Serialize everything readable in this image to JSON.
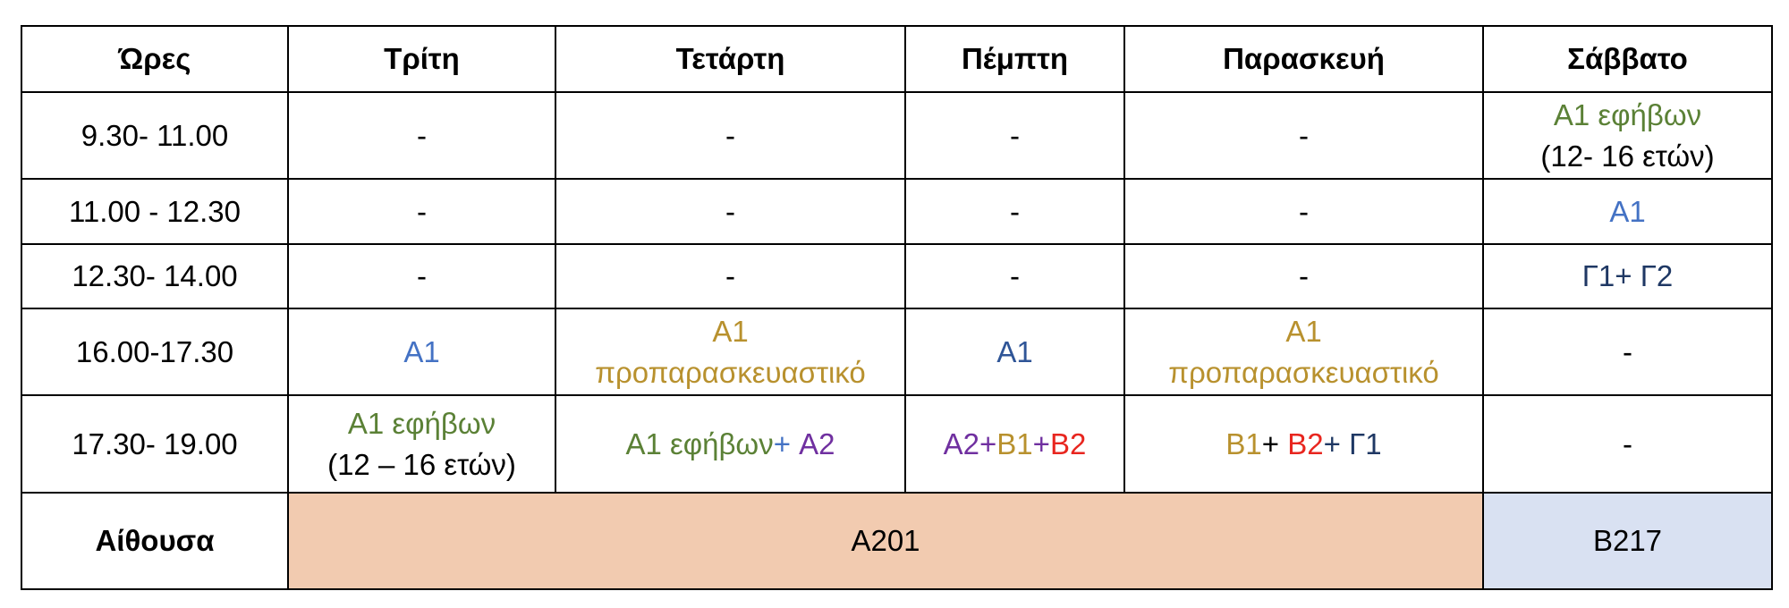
{
  "header": [
    "Ώρες",
    "Τρίτη",
    "Τετάρτη",
    "Πέμπτη",
    "Παρασκευή",
    "Σάββατο"
  ],
  "rows": [
    {
      "time": "9.30- 11.00",
      "cells": [
        [
          [
            {
              "text": "-"
            }
          ]
        ],
        [
          [
            {
              "text": "-"
            }
          ]
        ],
        [
          [
            {
              "text": "-"
            }
          ]
        ],
        [
          [
            {
              "text": "-"
            }
          ]
        ],
        [
          [
            {
              "text": "A1 εφήβων",
              "color": "#5b8136"
            }
          ],
          [
            {
              "text": "(12- 16 ετών)"
            }
          ]
        ]
      ]
    },
    {
      "time": "11.00 - 12.30",
      "cells": [
        [
          [
            {
              "text": "-"
            }
          ]
        ],
        [
          [
            {
              "text": "-"
            }
          ]
        ],
        [
          [
            {
              "text": "-"
            }
          ]
        ],
        [
          [
            {
              "text": "-"
            }
          ]
        ],
        [
          [
            {
              "text": "A1",
              "color": "#4472c4"
            }
          ]
        ]
      ]
    },
    {
      "time": "12.30- 14.00",
      "cells": [
        [
          [
            {
              "text": "-"
            }
          ]
        ],
        [
          [
            {
              "text": "-"
            }
          ]
        ],
        [
          [
            {
              "text": "-"
            }
          ]
        ],
        [
          [
            {
              "text": "-"
            }
          ]
        ],
        [
          [
            {
              "text": "Γ1+ Γ2",
              "color": "#1f3864"
            }
          ]
        ]
      ]
    },
    {
      "time": "16.00-17.30",
      "cells": [
        [
          [
            {
              "text": "A1",
              "color": "#4472c4"
            }
          ]
        ],
        [
          [
            {
              "text": "A1",
              "color": "#b8912e"
            }
          ],
          [
            {
              "text": "προπαρασκευαστικό",
              "color": "#b8912e"
            }
          ]
        ],
        [
          [
            {
              "text": "A1",
              "color": "#2f5597"
            }
          ]
        ],
        [
          [
            {
              "text": "A1",
              "color": "#b8912e"
            }
          ],
          [
            {
              "text": "προπαρασκευαστικό",
              "color": "#b8912e"
            }
          ]
        ],
        [
          [
            {
              "text": "-"
            }
          ]
        ]
      ]
    },
    {
      "time": "17.30- 19.00",
      "cells": [
        [
          [
            {
              "text": "A1 εφήβων",
              "color": "#5b8136"
            }
          ],
          [
            {
              "text": "(12 – 16 ετών)"
            }
          ]
        ],
        [
          [
            {
              "text": "A1 εφήβων",
              "color": "#5b8136"
            },
            {
              "text": "+",
              "color": "#4472c4"
            },
            {
              "text": " A2",
              "color": "#7030a0"
            }
          ]
        ],
        [
          [
            {
              "text": "A2+",
              "color": "#7030a0"
            },
            {
              "text": "B1",
              "color": "#b8912e"
            },
            {
              "text": "+",
              "color": "#7030a0"
            },
            {
              "text": "B2",
              "color": "#e8261f"
            }
          ]
        ],
        [
          [
            {
              "text": "B1",
              "color": "#b8912e"
            },
            {
              "text": "+ "
            },
            {
              "text": "B2",
              "color": "#e8261f"
            },
            {
              "text": "+ ",
              "color": "#1f3864"
            },
            {
              "text": "Γ1",
              "color": "#1f3864"
            }
          ]
        ],
        [
          [
            {
              "text": "-"
            }
          ]
        ]
      ]
    }
  ],
  "rooms": {
    "label": "Αίθουσα",
    "cells": [
      {
        "text": "A201",
        "span": 4,
        "background": "#f2cbb0"
      },
      {
        "text": "B217",
        "span": 1,
        "background": "#d9e1f2"
      }
    ]
  }
}
